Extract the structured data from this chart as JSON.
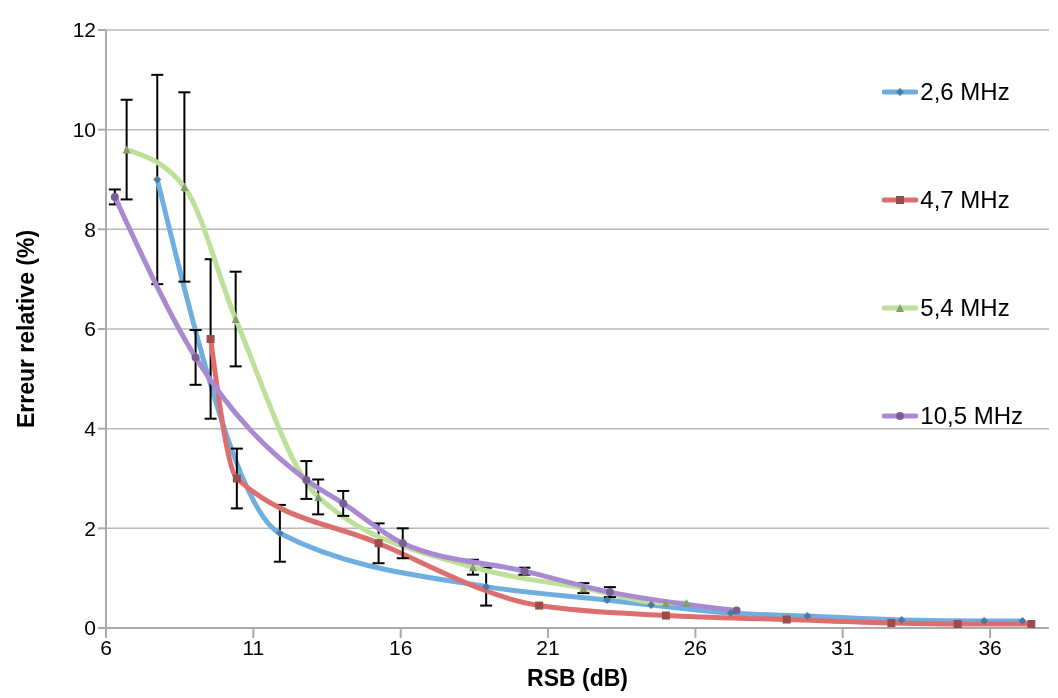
{
  "chart_data": {
    "type": "line",
    "xlabel": "RSB (dB)",
    "ylabel": "Erreur relative (%)",
    "xlim": [
      6,
      38
    ],
    "xticks": [
      6,
      11,
      16,
      21,
      26,
      31,
      36
    ],
    "ylim": [
      0,
      12
    ],
    "yticks": [
      0,
      2,
      4,
      6,
      8,
      10,
      12
    ],
    "grid": "y",
    "legend": "right",
    "line_style": "solid",
    "series": [
      {
        "name": "2,6 MHz",
        "color": "#6fafe0",
        "marker": "diamond",
        "x": [
          7.74,
          11.9,
          18.9,
          23.0,
          24.5,
          27.2,
          29.8,
          33.0,
          35.8,
          37.1
        ],
        "values": [
          9.0,
          1.9,
          0.83,
          0.56,
          0.46,
          0.3,
          0.24,
          0.16,
          0.14,
          0.14
        ],
        "errors": [
          2.1,
          0.57,
          0.38,
          null,
          null,
          null,
          null,
          null,
          null,
          null
        ]
      },
      {
        "name": "4,7 MHz",
        "color": "#dc6e6e",
        "marker": "square",
        "x": [
          9.55,
          10.44,
          15.25,
          20.7,
          25.0,
          29.1,
          32.65,
          34.9,
          37.4
        ],
        "values": [
          5.8,
          3.0,
          1.7,
          0.45,
          0.25,
          0.17,
          0.1,
          0.08,
          0.08
        ],
        "errors": [
          1.6,
          0.6,
          0.4,
          null,
          null,
          null,
          null,
          null,
          null
        ]
      },
      {
        "name": "5,4 MHz",
        "color": "#bde09a",
        "marker": "triangle",
        "x": [
          6.7,
          8.66,
          10.4,
          13.2,
          18.45,
          22.2,
          25.0,
          25.7
        ],
        "values": [
          9.6,
          8.85,
          6.2,
          2.63,
          1.22,
          0.8,
          0.5,
          0.5
        ],
        "errors": [
          1.0,
          1.9,
          0.95,
          0.35,
          0.15,
          0.1,
          null,
          null
        ]
      },
      {
        "name": "10,5 MHz",
        "color": "#a98ad0",
        "marker": "circle",
        "x": [
          6.3,
          9.04,
          12.8,
          14.05,
          16.07,
          20.2,
          23.1,
          27.4
        ],
        "values": [
          8.65,
          5.43,
          2.97,
          2.5,
          1.7,
          1.14,
          0.72,
          0.35
        ],
        "errors": [
          0.15,
          0.55,
          0.38,
          0.25,
          0.3,
          0.07,
          0.1,
          null
        ]
      }
    ]
  }
}
